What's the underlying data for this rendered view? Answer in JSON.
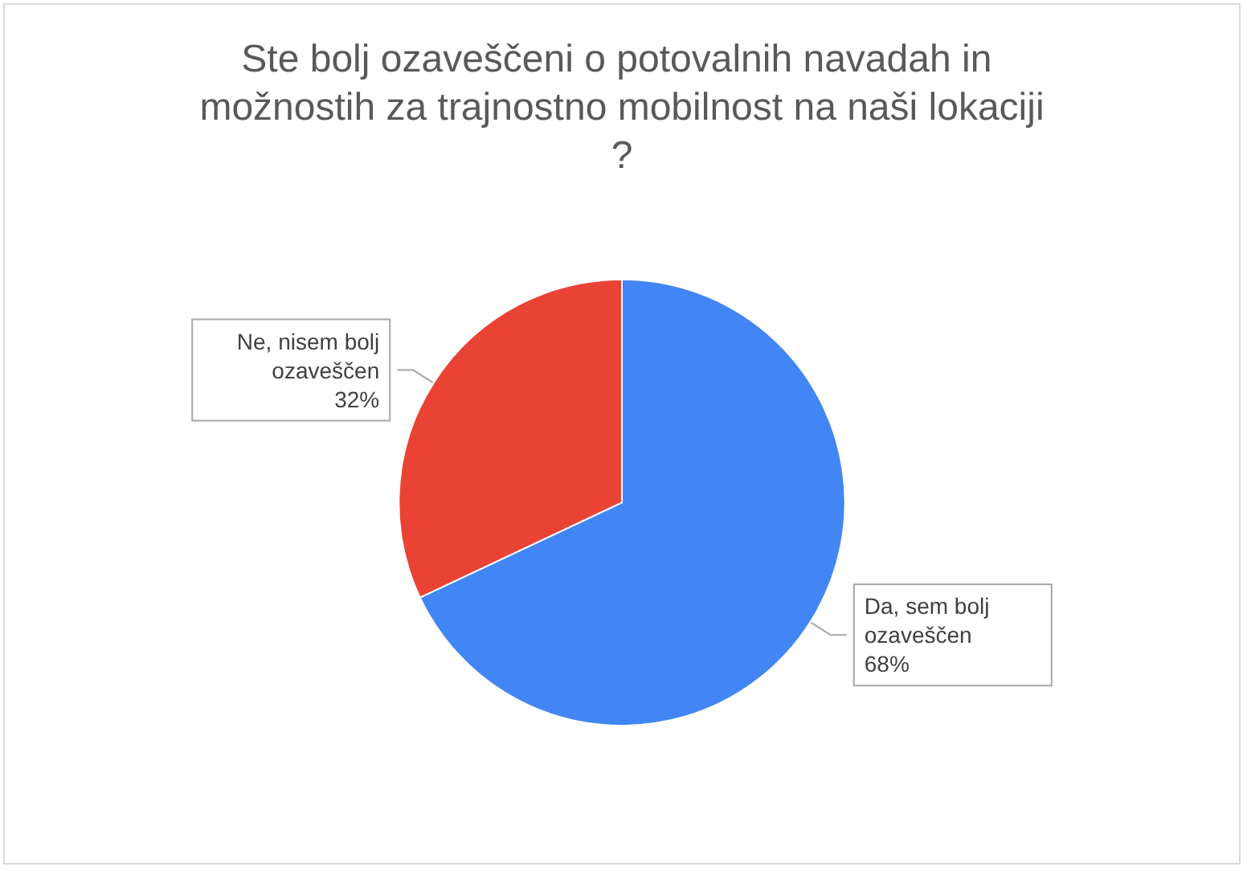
{
  "chart_data": {
    "type": "pie",
    "title": "Ste bolj ozaveščeni o potovalnih navadah in možnostih za trajnostno mobilnost na naši lokaciji?",
    "categories": [
      "Da, sem bolj ozaveščen",
      "Ne, nisem bolj ozaveščen"
    ],
    "values": [
      68,
      32
    ],
    "colors": [
      "#4285f4",
      "#ea4335"
    ],
    "value_labels": [
      "68%",
      "32%"
    ]
  }
}
